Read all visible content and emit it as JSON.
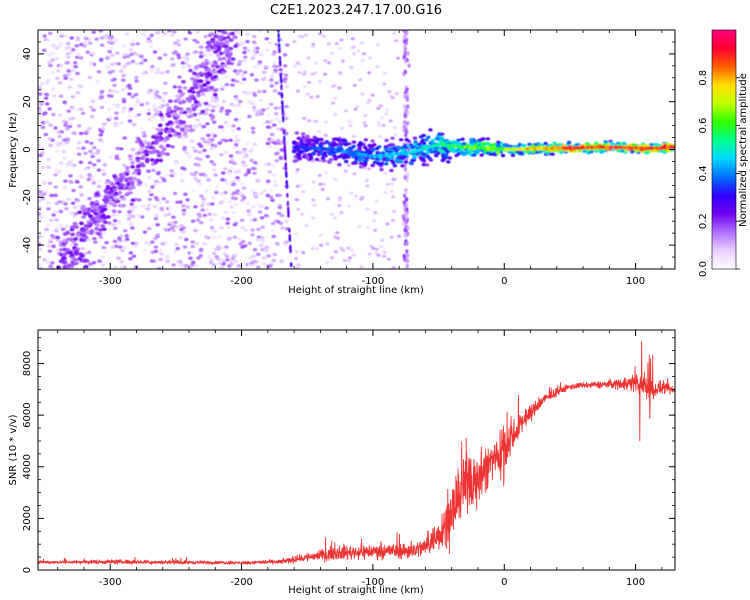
{
  "title": "C2E1.2023.247.17.00.G16",
  "chart_data": [
    {
      "type": "heatmap",
      "xlabel": "Height of straight line (km)",
      "ylabel": "Frequency (Hz)",
      "xlim": [
        -355,
        130
      ],
      "ylim": [
        -50,
        50
      ],
      "xticks": [
        -300,
        -200,
        -100,
        0,
        100
      ],
      "yticks": [
        -40,
        -20,
        0,
        20,
        40
      ],
      "colorbar": {
        "label": "Normalized spectral amplitude",
        "range": [
          0,
          1
        ],
        "ticks": [
          "0.0",
          "0.2",
          "0.4",
          "0.6",
          "0.8"
        ],
        "colors": [
          "#ffffff",
          "#e8d0ff",
          "#b070ff",
          "#7000f0",
          "#3000ff",
          "#0070ff",
          "#00d8ff",
          "#00ff90",
          "#30ff00",
          "#c0ff00",
          "#ffe000",
          "#ff6000",
          "#ff0030",
          "#ff0080"
        ]
      },
      "features": [
        {
          "name": "diffuse noise",
          "x_range": [
            -355,
            -165
          ],
          "amplitude": 0.15
        },
        {
          "name": "diagonal band",
          "x": [
            -330,
            -300,
            -265,
            -240,
            -215
          ],
          "y": [
            -40,
            -20,
            0,
            20,
            40
          ],
          "amplitude": 0.2
        },
        {
          "name": "signal line",
          "x": [
            -160,
            -130,
            -100,
            -70,
            -50,
            -30,
            0,
            40,
            80,
            110,
            130
          ],
          "y": [
            1,
            0,
            -3,
            -1,
            2,
            1,
            0,
            0.5,
            1,
            0.5,
            1
          ],
          "amplitude": [
            0.35,
            0.4,
            0.45,
            0.5,
            0.55,
            0.65,
            0.7,
            0.9,
            0.95,
            0.95,
            0.95
          ]
        },
        {
          "name": "vertical streak",
          "x": -75,
          "y_range": [
            -50,
            50
          ],
          "amplitude": 0.15
        },
        {
          "name": "near-vertical line",
          "x": [
            -172,
            -162
          ],
          "y": [
            50,
            -50
          ],
          "amplitude": 0.25
        }
      ]
    },
    {
      "type": "line",
      "xlabel": "Height of straight line (km)",
      "ylabel": "SNR (10 * v/v)",
      "xlim": [
        -355,
        130
      ],
      "ylim": [
        0,
        9300
      ],
      "xticks": [
        -300,
        -200,
        -100,
        0,
        100
      ],
      "yticks": [
        0,
        2000,
        4000,
        6000,
        8000
      ],
      "color": "#ee3333",
      "series": [
        {
          "x": [
            -355,
            -300,
            -250,
            -200,
            -170,
            -150,
            -130,
            -110,
            -90,
            -70,
            -60,
            -50,
            -40,
            -30,
            -20,
            -10,
            0,
            10,
            20,
            30,
            40,
            50,
            60,
            80,
            100,
            110,
            120,
            130
          ],
          "values": [
            300,
            320,
            300,
            280,
            320,
            500,
            650,
            700,
            750,
            750,
            900,
            1400,
            2200,
            3300,
            3600,
            4200,
            4800,
            5500,
            6100,
            6600,
            6900,
            7100,
            7150,
            7200,
            7250,
            7000,
            7050,
            6950
          ],
          "noise": [
            80,
            120,
            100,
            80,
            120,
            250,
            350,
            400,
            400,
            450,
            500,
            900,
            1300,
            1500,
            1500,
            1400,
            1200,
            700,
            450,
            300,
            200,
            180,
            150,
            200,
            500,
            700,
            300,
            250
          ]
        }
      ]
    }
  ]
}
